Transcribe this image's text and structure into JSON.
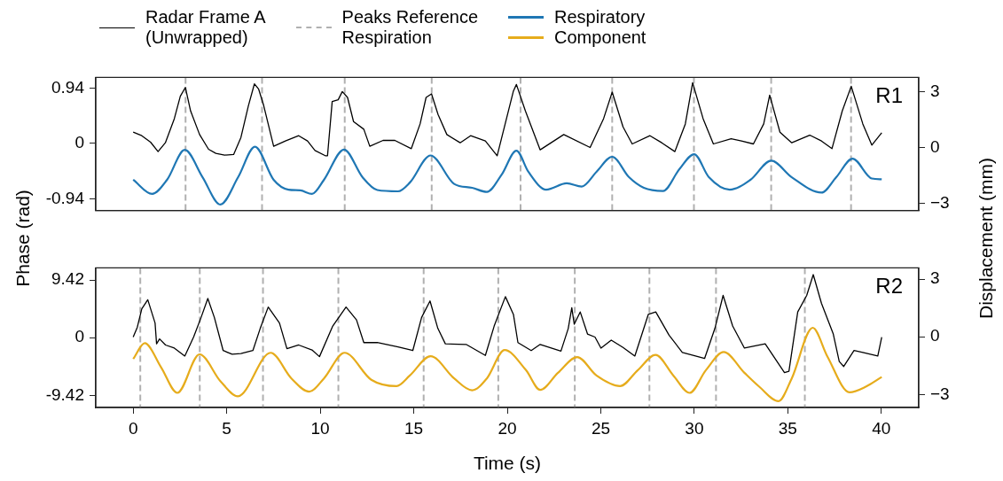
{
  "chart_data": [
    {
      "type": "line",
      "legend": "top",
      "ylabel": "Phase (rad)",
      "y2label": "Displacement (mm)",
      "annotations": [
        "R1"
      ],
      "tick_labels": "y",
      "xlim": [
        -2,
        42
      ],
      "ylim": [
        -1.14,
        1.12
      ],
      "yticks": [
        -0.94,
        0,
        0.94
      ],
      "y2lim": [
        -3.39,
        3.77
      ],
      "y2ticks": [
        {
          "value": -3,
          "label": "−3"
        },
        {
          "value": 0,
          "label": "0"
        },
        {
          "value": 3,
          "label": "3"
        }
      ],
      "ref_lines": [
        {
          "axis": "x",
          "value": 2.8,
          "label": "Peaks Reference\nRespiration",
          "color": "#b0b0b0",
          "line_style": "dashed"
        },
        {
          "axis": "x",
          "value": 6.89,
          "color": "#b0b0b0",
          "line_style": "dashed"
        },
        {
          "axis": "x",
          "value": 11.31,
          "color": "#b0b0b0",
          "line_style": "dashed"
        },
        {
          "axis": "x",
          "value": 15.96,
          "color": "#b0b0b0",
          "line_style": "dashed"
        },
        {
          "axis": "x",
          "value": 20.71,
          "color": "#b0b0b0",
          "line_style": "dashed"
        },
        {
          "axis": "x",
          "value": 25.61,
          "color": "#b0b0b0",
          "line_style": "dashed"
        },
        {
          "axis": "x",
          "value": 29.98,
          "color": "#b0b0b0",
          "line_style": "dashed"
        },
        {
          "axis": "x",
          "value": 34.11,
          "color": "#b0b0b0",
          "line_style": "dashed"
        },
        {
          "axis": "x",
          "value": 38.38,
          "color": "#b0b0b0",
          "line_style": "dashed"
        }
      ],
      "series": [
        {
          "name": "Radar Frame A\n(Unwrapped)",
          "color": "#000000",
          "x": [
            0,
            0.46,
            0.93,
            1.33,
            1.72,
            2.2,
            2.52,
            2.79,
            3.07,
            3.55,
            4.03,
            4.42,
            4.89,
            5.37,
            5.76,
            6.16,
            6.48,
            6.71,
            6.98,
            7.51,
            8.14,
            8.85,
            9.32,
            9.72,
            10.27,
            10.39,
            10.64,
            10.96,
            11.18,
            11.46,
            11.78,
            12.33,
            12.65,
            13.36,
            13.99,
            14.87,
            15.34,
            15.66,
            15.95,
            16.3,
            16.77,
            17.48,
            18.04,
            18.83,
            19.46,
            20.33,
            20.49,
            20.97,
            21.76,
            23.02,
            24.43,
            25.15,
            25.61,
            26.19,
            26.68,
            27.63,
            28.26,
            28.96,
            29.52,
            29.91,
            30.47,
            31.02,
            31.97,
            32.52,
            33.16,
            33.71,
            34.03,
            34.58,
            35.21,
            36.17,
            36.8,
            37.36,
            37.91,
            38.39,
            39.01,
            39.49,
            40.02
          ],
          "values": [
            0.19,
            0.13,
            0.02,
            -0.14,
            0.01,
            0.42,
            0.8,
            0.95,
            0.55,
            0.15,
            -0.1,
            -0.17,
            -0.2,
            -0.19,
            0.1,
            0.64,
            1.01,
            0.92,
            0.64,
            -0.05,
            0.04,
            0.13,
            0.04,
            -0.12,
            -0.21,
            -0.21,
            0.71,
            0.74,
            0.88,
            0.78,
            0.37,
            0.24,
            -0.05,
            0.05,
            0.05,
            -0.09,
            0.33,
            0.78,
            0.84,
            0.49,
            0.15,
            0.01,
            0.13,
            0.04,
            -0.21,
            0.89,
            1.0,
            0.55,
            -0.11,
            0.15,
            -0.07,
            0.42,
            0.87,
            0.28,
            -0.01,
            0.13,
            0.01,
            -0.14,
            0.33,
            1.03,
            0.42,
            -0.01,
            0.08,
            0.04,
            -0.01,
            0.33,
            0.82,
            0.19,
            0.01,
            0.14,
            0.04,
            -0.09,
            0.55,
            0.97,
            0.33,
            -0.03,
            0.18
          ]
        },
        {
          "name": "Respiratory\nComponent",
          "color": "#1f77b4",
          "axis": "y2",
          "x": [
            0,
            1.01,
            1.81,
            2.76,
            3.71,
            4.66,
            5.61,
            6.51,
            7.51,
            8.3,
            8.93,
            9.56,
            10.2,
            11.27,
            12.26,
            13.05,
            14.16,
            14.79,
            15.9,
            17.16,
            18.12,
            18.91,
            19.7,
            20.49,
            21.13,
            22.08,
            23.18,
            23.98,
            24.77,
            25.61,
            26.51,
            27.3,
            28.33,
            29.2,
            29.99,
            30.78,
            31.89,
            33,
            34.11,
            35.21,
            36.8,
            37.59,
            38.46,
            39.49,
            40.02
          ],
          "values": [
            -1.74,
            -2.5,
            -1.74,
            -0.13,
            -1.6,
            -3.07,
            -1.6,
            0.04,
            -1.74,
            -2.27,
            -2.31,
            -2.5,
            -1.74,
            -0.11,
            -1.6,
            -2.29,
            -2.36,
            -1.89,
            -0.43,
            -1.96,
            -2.17,
            -2.39,
            -1.46,
            -0.17,
            -1.31,
            -2.27,
            -1.93,
            -2.1,
            -1.31,
            -0.5,
            -1.6,
            -2.17,
            -2.34,
            -1.17,
            -0.36,
            -1.6,
            -2.27,
            -1.74,
            -0.71,
            -1.6,
            -2.43,
            -1.6,
            -0.6,
            -1.67,
            -1.71
          ]
        }
      ]
    },
    {
      "type": "line",
      "xlabel": "Time (s)",
      "annotations": [
        "R2"
      ],
      "xlim": [
        -2,
        42
      ],
      "xticks": [
        0,
        5,
        10,
        15,
        20,
        25,
        30,
        35,
        40
      ],
      "ylim": [
        -11.4,
        11.4
      ],
      "yticks": [
        -9.42,
        0,
        9.42
      ],
      "y2lim": [
        -3.67,
        3.58
      ],
      "y2ticks": [
        {
          "value": -3,
          "label": "−3"
        },
        {
          "value": 0,
          "label": "0"
        },
        {
          "value": 3,
          "label": "3"
        }
      ],
      "ref_lines": [
        {
          "axis": "x",
          "value": 0.38,
          "color": "#b0b0b0",
          "line_style": "dashed"
        },
        {
          "axis": "x",
          "value": 3.56,
          "color": "#b0b0b0",
          "line_style": "dashed"
        },
        {
          "axis": "x",
          "value": 6.94,
          "color": "#b0b0b0",
          "line_style": "dashed"
        },
        {
          "axis": "x",
          "value": 10.97,
          "color": "#b0b0b0",
          "line_style": "dashed"
        },
        {
          "axis": "x",
          "value": 15.53,
          "color": "#b0b0b0",
          "line_style": "dashed"
        },
        {
          "axis": "x",
          "value": 19.52,
          "color": "#b0b0b0",
          "line_style": "dashed"
        },
        {
          "axis": "x",
          "value": 23.61,
          "color": "#b0b0b0",
          "line_style": "dashed"
        },
        {
          "axis": "x",
          "value": 27.6,
          "color": "#b0b0b0",
          "line_style": "dashed"
        },
        {
          "axis": "x",
          "value": 31.16,
          "color": "#b0b0b0",
          "line_style": "dashed"
        },
        {
          "axis": "x",
          "value": 35.91,
          "color": "#b0b0b0",
          "line_style": "dashed"
        }
      ],
      "series": [
        {
          "name": "Radar Frame A\n(Unwrapped)",
          "color": "#000000",
          "x": [
            0,
            0.22,
            0.46,
            0.78,
            1.17,
            1.25,
            1.41,
            1.73,
            2.2,
            2.76,
            3.23,
            3.63,
            3.99,
            4.34,
            4.81,
            5.29,
            5.76,
            6.4,
            6.79,
            7.22,
            7.82,
            8.22,
            8.85,
            9.56,
            9.96,
            10.67,
            11.38,
            11.94,
            12.33,
            13.05,
            14.16,
            14.95,
            15.42,
            15.87,
            16.29,
            16.69,
            17.8,
            18.83,
            19.3,
            19.9,
            20.33,
            20.57,
            21.28,
            21.76,
            22.87,
            23.26,
            23.45,
            23.58,
            23.9,
            24.29,
            24.69,
            25.01,
            25.56,
            26.19,
            26.82,
            27.54,
            27.94,
            28.65,
            29.36,
            30.55,
            31.1,
            31.54,
            32.05,
            32.68,
            33.79,
            34.82,
            35.06,
            35.53,
            36.01,
            36.36,
            36.8,
            37.43,
            37.75,
            37.99,
            38.54,
            39.01,
            39.81,
            40.02
          ],
          "values": [
            0.1,
            1.7,
            4.7,
            6.2,
            2.4,
            -1.0,
            -0.2,
            -1.2,
            -1.7,
            -3.0,
            0.1,
            3.3,
            6.4,
            3.3,
            -2.1,
            -2.7,
            -2.6,
            -2.1,
            1.5,
            5.0,
            2.4,
            -1.8,
            -1.2,
            -2.0,
            -3.1,
            1.9,
            5.0,
            2.9,
            -0.8,
            -0.8,
            -1.5,
            -2.1,
            3.3,
            6.0,
            1.5,
            -1.0,
            -1.1,
            -2.9,
            1.9,
            6.7,
            3.8,
            -0.8,
            -2.1,
            -1.1,
            -2.2,
            1.5,
            4.9,
            2.2,
            4.2,
            0.6,
            0.1,
            -1.7,
            -0.4,
            -1.6,
            -3.0,
            3.8,
            4.2,
            0.4,
            -2.4,
            -3.4,
            1.5,
            6.9,
            1.9,
            -1.7,
            -1.0,
            -5.7,
            -5.5,
            4.2,
            6.9,
            10.3,
            5.6,
            0.6,
            -3.9,
            -4.7,
            -2.1,
            -2.4,
            -3.0,
            0.1
          ]
        },
        {
          "color": "#e6ac1c",
          "axis": "y2",
          "x": [
            0,
            0.62,
            1.49,
            2.36,
            3.55,
            4.66,
            5.6,
            7.35,
            8.46,
            9.41,
            10.2,
            11.3,
            12.73,
            14.08,
            14.79,
            15.9,
            17.16,
            18.12,
            18.91,
            19.86,
            21,
            21.76,
            22.71,
            23.74,
            24.77,
            26.03,
            26.98,
            27.93,
            28.88,
            29.75,
            30.62,
            31.57,
            32.68,
            33.47,
            34.5,
            35.21,
            36.33,
            37.11,
            38.3,
            39.17,
            40.02
          ],
          "values": [
            -1.15,
            -0.33,
            -1.58,
            -2.91,
            -0.91,
            -2.3,
            -3.09,
            -0.83,
            -2.16,
            -2.85,
            -2.16,
            -0.83,
            -2.23,
            -2.56,
            -2.01,
            -1.01,
            -2.16,
            -2.78,
            -2.16,
            -0.69,
            -1.73,
            -2.76,
            -1.87,
            -1.05,
            -2.01,
            -2.56,
            -1.73,
            -0.94,
            -2.01,
            -2.91,
            -1.73,
            -0.79,
            -1.87,
            -2.59,
            -3.34,
            -2.16,
            0.47,
            -1.01,
            -2.88,
            -2.59,
            -2.09
          ]
        }
      ]
    }
  ]
}
